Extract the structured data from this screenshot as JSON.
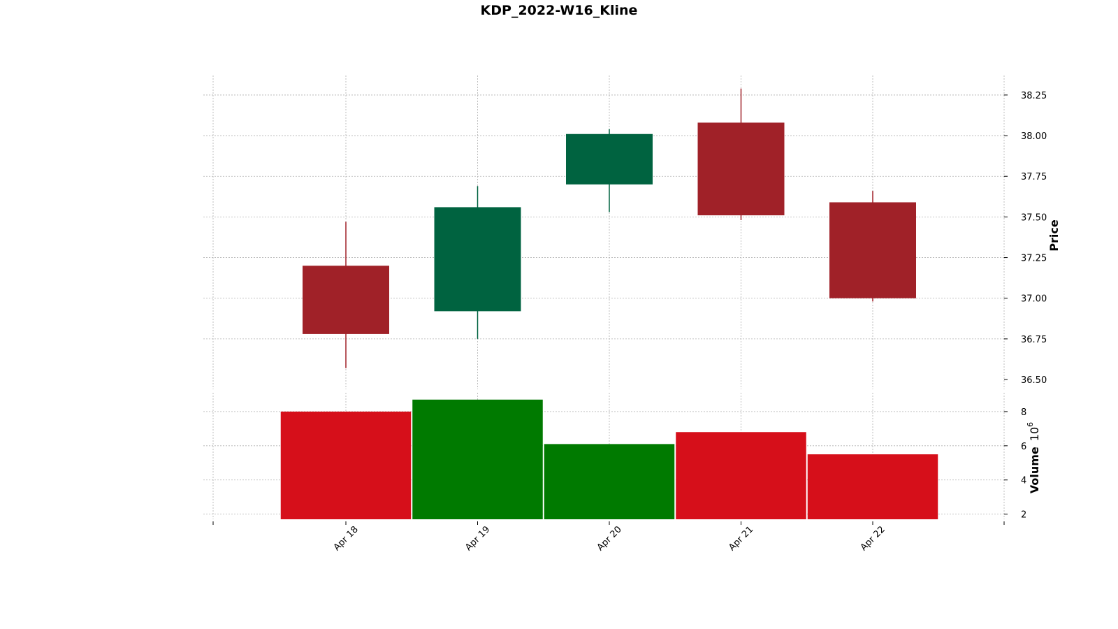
{
  "chart_data": {
    "type": "candlestick",
    "title": "KDP_2022-W16_Kline",
    "categories": [
      "Apr 18",
      "Apr 19",
      "Apr 20",
      "Apr 21",
      "Apr 22"
    ],
    "ohlc": [
      {
        "date": "Apr 18",
        "open": 37.2,
        "high": 37.47,
        "low": 36.57,
        "close": 36.78,
        "direction": "down"
      },
      {
        "date": "Apr 19",
        "open": 36.92,
        "high": 37.69,
        "low": 36.75,
        "close": 37.56,
        "direction": "up"
      },
      {
        "date": "Apr 20",
        "open": 37.7,
        "high": 38.04,
        "low": 37.53,
        "close": 38.01,
        "direction": "up"
      },
      {
        "date": "Apr 21",
        "open": 38.08,
        "high": 38.29,
        "low": 37.48,
        "close": 37.51,
        "direction": "down"
      },
      {
        "date": "Apr 22",
        "open": 37.59,
        "high": 37.66,
        "low": 36.98,
        "close": 37.0,
        "direction": "down"
      }
    ],
    "volume": [
      8.0,
      8.7,
      6.1,
      6.8,
      5.5
    ],
    "price_axis": {
      "label": "Price",
      "ticks": [
        "36.50",
        "36.75",
        "37.00",
        "37.25",
        "37.50",
        "37.75",
        "38.00",
        "38.25"
      ],
      "tick_values": [
        36.5,
        36.75,
        37.0,
        37.25,
        37.5,
        37.75,
        38.0,
        38.25
      ],
      "ylim": [
        36.44,
        38.37
      ]
    },
    "volume_axis": {
      "label": "Volume",
      "exponent_base": "10",
      "exponent_power": "6",
      "ticks": [
        "2",
        "4",
        "6",
        "8"
      ],
      "tick_values": [
        2,
        4,
        6,
        8
      ],
      "ylim": [
        1.7,
        9.1
      ]
    },
    "grid": true,
    "colors": {
      "up_candle": "#006340",
      "down_candle": "#a02128",
      "up_volume": "#007a00",
      "down_volume": "#d60f1a"
    }
  }
}
